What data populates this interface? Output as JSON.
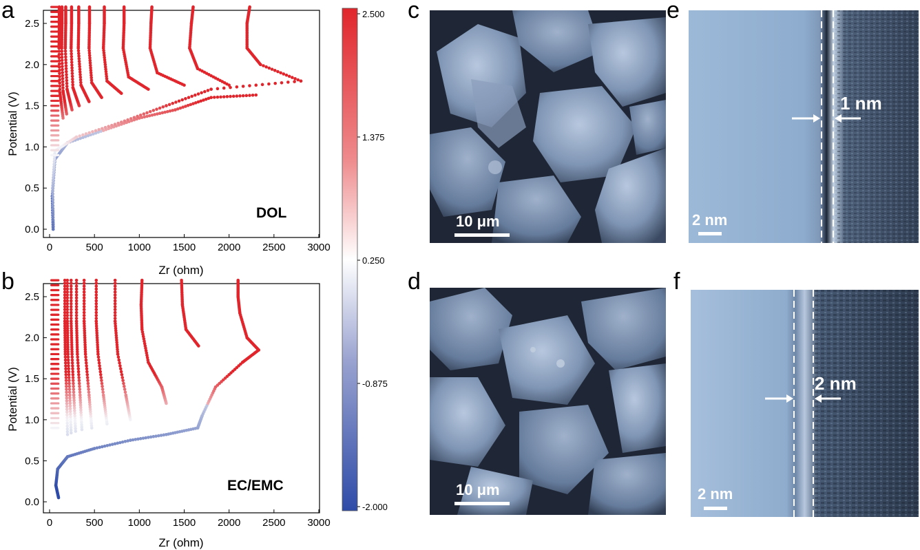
{
  "panel_labels": {
    "a": "a",
    "b": "b",
    "c": "c",
    "d": "d",
    "e": "e",
    "f": "f"
  },
  "chart_data": [
    {
      "type": "scatter",
      "panel": "a",
      "annotation": "DOL",
      "xlabel": "Zr (ohm)",
      "ylabel": "Potential (V)",
      "xlim": [
        0,
        3000
      ],
      "ylim": [
        0,
        2.75
      ],
      "xticks": [
        "0",
        "500",
        "1000",
        "1500",
        "2000",
        "2500",
        "3000"
      ],
      "yticks": [
        "0.0",
        "0.5",
        "1.0",
        "1.5",
        "2.0",
        "2.5"
      ],
      "color_scale": "blue-white-red (colorbar)",
      "series": [
        {
          "points": [
            [
              40,
              0.0
            ],
            [
              30,
              0.4
            ],
            [
              60,
              0.85
            ],
            [
              200,
              1.05
            ],
            [
              600,
              1.2
            ],
            [
              1000,
              1.35
            ],
            [
              1400,
              1.45
            ],
            [
              1800,
              1.6
            ],
            [
              2300,
              1.63
            ]
          ]
        },
        {
          "points": [
            [
              40,
              0.0
            ],
            [
              35,
              0.5
            ],
            [
              60,
              0.95
            ],
            [
              300,
              1.12
            ],
            [
              800,
              1.3
            ],
            [
              1300,
              1.5
            ],
            [
              1800,
              1.7
            ],
            [
              2800,
              1.8
            ]
          ]
        },
        {
          "points": [
            [
              2800,
              1.8
            ],
            [
              2350,
              2.0
            ],
            [
              2200,
              2.2
            ],
            [
              2200,
              2.5
            ],
            [
              2230,
              2.7
            ]
          ]
        },
        {
          "points": [
            [
              2000,
              1.75
            ],
            [
              1650,
              1.95
            ],
            [
              1560,
              2.2
            ],
            [
              1580,
              2.5
            ],
            [
              1600,
              2.7
            ]
          ]
        },
        {
          "points": [
            [
              1500,
              1.75
            ],
            [
              1200,
              1.9
            ],
            [
              1120,
              2.2
            ],
            [
              1130,
              2.5
            ],
            [
              1140,
              2.7
            ]
          ]
        },
        {
          "points": [
            [
              1100,
              1.7
            ],
            [
              880,
              1.85
            ],
            [
              820,
              2.2
            ],
            [
              830,
              2.5
            ],
            [
              830,
              2.7
            ]
          ]
        },
        {
          "points": [
            [
              800,
              1.65
            ],
            [
              640,
              1.8
            ],
            [
              600,
              2.2
            ],
            [
              610,
              2.5
            ],
            [
              610,
              2.7
            ]
          ]
        },
        {
          "points": [
            [
              580,
              1.6
            ],
            [
              470,
              1.78
            ],
            [
              440,
              2.2
            ],
            [
              445,
              2.5
            ],
            [
              445,
              2.7
            ]
          ]
        },
        {
          "points": [
            [
              440,
              1.55
            ],
            [
              350,
              1.75
            ],
            [
              320,
              2.2
            ],
            [
              325,
              2.5
            ],
            [
              325,
              2.7
            ]
          ]
        },
        {
          "points": [
            [
              330,
              1.5
            ],
            [
              260,
              1.72
            ],
            [
              240,
              2.2
            ],
            [
              245,
              2.5
            ],
            [
              245,
              2.7
            ]
          ]
        },
        {
          "points": [
            [
              250,
              1.45
            ],
            [
              195,
              1.7
            ],
            [
              175,
              2.2
            ],
            [
              180,
              2.5
            ],
            [
              180,
              2.7
            ]
          ]
        },
        {
          "points": [
            [
              190,
              1.4
            ],
            [
              150,
              1.68
            ],
            [
              135,
              2.2
            ],
            [
              138,
              2.5
            ],
            [
              138,
              2.7
            ]
          ]
        },
        {
          "points": [
            [
              150,
              1.35
            ],
            [
              115,
              1.66
            ],
            [
              105,
              2.2
            ],
            [
              108,
              2.5
            ],
            [
              108,
              2.7
            ]
          ]
        }
      ]
    },
    {
      "type": "scatter",
      "panel": "b",
      "annotation": "EC/EMC",
      "xlabel": "Zr (ohm)",
      "ylabel": "Potential (V)",
      "xlim": [
        0,
        3000
      ],
      "ylim": [
        0,
        2.75
      ],
      "xticks": [
        "0",
        "500",
        "1000",
        "1500",
        "2000",
        "2500",
        "3000"
      ],
      "yticks": [
        "0.0",
        "0.5",
        "1.0",
        "1.5",
        "2.0",
        "2.5"
      ],
      "color_scale": "blue-white-red (colorbar)",
      "series": [
        {
          "points": [
            [
              100,
              0.05
            ],
            [
              70,
              0.2
            ],
            [
              90,
              0.4
            ],
            [
              200,
              0.55
            ],
            [
              500,
              0.65
            ],
            [
              900,
              0.75
            ],
            [
              1300,
              0.82
            ],
            [
              1650,
              0.9
            ],
            [
              1700,
              1.05
            ],
            [
              1850,
              1.4
            ],
            [
              2150,
              1.7
            ],
            [
              2330,
              1.85
            ]
          ]
        },
        {
          "points": [
            [
              2330,
              1.85
            ],
            [
              2200,
              2.0
            ],
            [
              2120,
              2.3
            ],
            [
              2100,
              2.5
            ],
            [
              2100,
              2.7
            ]
          ]
        },
        {
          "points": [
            [
              1660,
              1.9
            ],
            [
              1520,
              2.1
            ],
            [
              1480,
              2.4
            ],
            [
              1470,
              2.7
            ]
          ]
        },
        {
          "points": [
            [
              1300,
              1.2
            ],
            [
              1250,
              1.4
            ],
            [
              1100,
              1.7
            ],
            [
              1030,
              2.1
            ],
            [
              1020,
              2.4
            ],
            [
              1030,
              2.7
            ]
          ]
        },
        {
          "points": [
            [
              900,
              1.0
            ],
            [
              850,
              1.3
            ],
            [
              760,
              1.8
            ],
            [
              730,
              2.2
            ],
            [
              730,
              2.7
            ]
          ]
        },
        {
          "points": [
            [
              640,
              0.95
            ],
            [
              600,
              1.3
            ],
            [
              540,
              1.8
            ],
            [
              520,
              2.2
            ],
            [
              520,
              2.7
            ]
          ]
        },
        {
          "points": [
            [
              470,
              0.9
            ],
            [
              440,
              1.3
            ],
            [
              400,
              1.8
            ],
            [
              385,
              2.2
            ],
            [
              385,
              2.7
            ]
          ]
        },
        {
          "points": [
            [
              360,
              0.88
            ],
            [
              340,
              1.3
            ],
            [
              310,
              1.8
            ],
            [
              300,
              2.2
            ],
            [
              300,
              2.7
            ]
          ]
        },
        {
          "points": [
            [
              290,
              0.86
            ],
            [
              270,
              1.3
            ],
            [
              250,
              1.8
            ],
            [
              240,
              2.2
            ],
            [
              240,
              2.7
            ]
          ]
        },
        {
          "points": [
            [
              240,
              0.84
            ],
            [
              225,
              1.3
            ],
            [
              205,
              1.8
            ],
            [
              198,
              2.2
            ],
            [
              198,
              2.7
            ]
          ]
        },
        {
          "points": [
            [
              200,
              0.82
            ],
            [
              190,
              1.3
            ],
            [
              175,
              1.8
            ],
            [
              170,
              2.2
            ],
            [
              170,
              2.7
            ]
          ]
        }
      ]
    }
  ],
  "colorbar": {
    "ticks": [
      "2.500",
      "1.375",
      "0.250",
      "-0.875",
      "-2.000"
    ],
    "min_color": "#2e4ba8",
    "mid_color": "#ffffff",
    "max_color": "#e0262c"
  },
  "micrographs": {
    "c": {
      "scale_label": "10 μm",
      "kind": "SEM"
    },
    "d": {
      "scale_label": "10 μm",
      "kind": "SEM"
    },
    "e": {
      "scale_label": "2 nm",
      "thickness_label": "1 nm",
      "kind": "TEM"
    },
    "f": {
      "scale_label": "2 nm",
      "thickness_label": "2 nm",
      "kind": "TEM"
    }
  }
}
